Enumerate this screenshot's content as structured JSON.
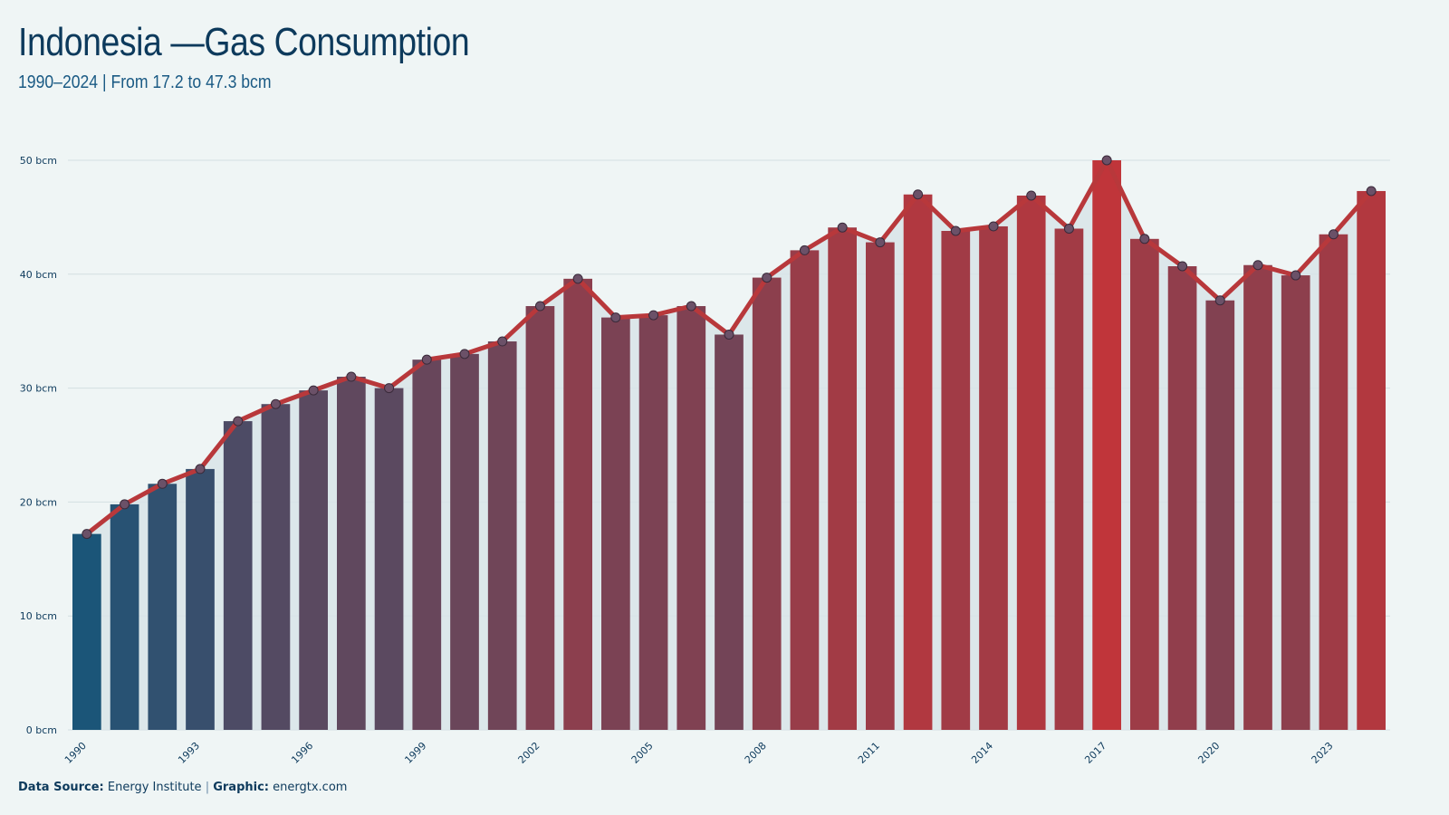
{
  "header": {
    "title": "Indonesia —Gas Consumption",
    "subtitle": "1990–2024 | From 17.2 to 47.3 bcm"
  },
  "footer": {
    "source_label": "Data Source:",
    "source_value": "Energy Institute",
    "separator": "|",
    "graphic_label": "Graphic:",
    "graphic_value": "energtx.com"
  },
  "colors": {
    "background": "#eff5f5",
    "bar_low": "#1b5578",
    "bar_high": "#c0353a",
    "line": "#b8383b",
    "marker_fill": "#6b5168",
    "grid": "#d3dfe2",
    "area": "#d8e4e8",
    "title": "#0d3a5c"
  },
  "chart_data": {
    "type": "bar",
    "overlay": "line",
    "x": [
      1990,
      1991,
      1992,
      1993,
      1994,
      1995,
      1996,
      1997,
      1998,
      1999,
      2000,
      2001,
      2002,
      2003,
      2004,
      2005,
      2006,
      2007,
      2008,
      2009,
      2010,
      2011,
      2012,
      2013,
      2014,
      2015,
      2016,
      2017,
      2018,
      2019,
      2020,
      2021,
      2022,
      2023,
      2024
    ],
    "values": [
      17.2,
      19.8,
      21.6,
      22.9,
      27.1,
      28.6,
      29.8,
      31.0,
      30.0,
      32.5,
      33.0,
      34.1,
      37.2,
      39.6,
      36.2,
      36.4,
      37.2,
      34.7,
      39.7,
      42.1,
      44.1,
      42.8,
      47.0,
      43.8,
      44.2,
      46.9,
      44.0,
      50.0,
      43.1,
      40.7,
      37.7,
      40.8,
      39.9,
      43.5,
      47.3
    ],
    "x_tick_labels": [
      "1990",
      "1993",
      "1996",
      "1999",
      "2002",
      "2005",
      "2008",
      "2011",
      "2014",
      "2017",
      "2020",
      "2023"
    ],
    "y_ticks": [
      0,
      10,
      20,
      30,
      40,
      50
    ],
    "y_tick_labels": [
      "0 bcm",
      "10 bcm",
      "20 bcm",
      "30 bcm",
      "40 bcm",
      "50 bcm"
    ],
    "ylim": [
      0,
      50
    ],
    "grid": true,
    "legend": "none"
  }
}
